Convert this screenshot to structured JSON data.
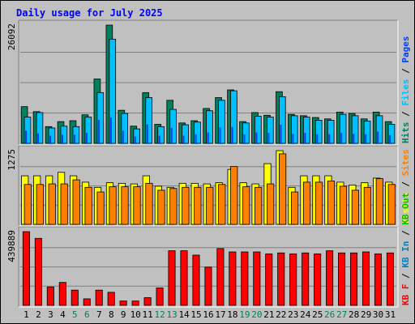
{
  "title": "Daily usage for July 2025",
  "colors": {
    "background": "#C0C0C0",
    "frame_light": "#FFFFFF",
    "frame_dark": "#808080",
    "title": "#0000FF",
    "grid": "#808080",
    "hits": "#00805C",
    "files": "#00C0FF",
    "pages": "#0040FF",
    "visits": "#FFFF00",
    "sites": "#FF8000",
    "kbytes": "#FF0000",
    "kb_in": "#0080C0",
    "kb_out": "#00C000",
    "weekend_label": "#00805C",
    "day_label": "#000000"
  },
  "chart_data": [
    {
      "type": "bar",
      "name": "top-panel",
      "ymax_label": "26092",
      "ymax": 26092,
      "legend": [
        {
          "text": "Hits",
          "color_key": "hits"
        },
        {
          "text": "Files",
          "color_key": "files"
        },
        {
          "text": "Pages",
          "color_key": "pages"
        }
      ],
      "categories": [
        "1",
        "2",
        "3",
        "4",
        "5",
        "6",
        "7",
        "8",
        "9",
        "10",
        "11",
        "12",
        "13",
        "14",
        "15",
        "16",
        "17",
        "18",
        "19",
        "20",
        "21",
        "22",
        "23",
        "24",
        "25",
        "26",
        "27",
        "28",
        "29",
        "30",
        "31"
      ],
      "series": [
        {
          "name": "Hits",
          "color_key": "hits",
          "values": [
            8100,
            7000,
            3700,
            4800,
            5000,
            6300,
            14200,
            26092,
            7300,
            3800,
            11200,
            4200,
            9500,
            4500,
            5000,
            7700,
            10100,
            11800,
            4800,
            6800,
            6200,
            11400,
            6400,
            6100,
            5700,
            5400,
            6900,
            6600,
            5400,
            6900,
            4800
          ]
        },
        {
          "name": "Files",
          "color_key": "files",
          "values": [
            5800,
            6800,
            3400,
            3800,
            3700,
            5800,
            11200,
            23000,
            6600,
            3200,
            10100,
            3700,
            7500,
            4100,
            4700,
            7200,
            9500,
            11600,
            4500,
            6000,
            5800,
            10300,
            6100,
            5800,
            5100,
            5100,
            6400,
            6100,
            4900,
            6100,
            4200
          ]
        },
        {
          "name": "Pages",
          "color_key": "pages",
          "values": [
            2800,
            2200,
            1700,
            1900,
            1900,
            2300,
            5200,
            5700,
            2800,
            1500,
            4200,
            1700,
            3400,
            1700,
            2000,
            2400,
            3500,
            3600,
            2000,
            2400,
            2300,
            4100,
            2100,
            2300,
            2000,
            2000,
            2300,
            2100,
            2000,
            2600,
            1800
          ]
        }
      ]
    },
    {
      "type": "bar",
      "name": "middle-panel",
      "ymax_label": "1275",
      "ymax": 1275,
      "legend": [
        {
          "text": "Visits",
          "color_key": "visits"
        },
        {
          "text": "Sites",
          "color_key": "sites"
        }
      ],
      "categories": [
        "1",
        "2",
        "3",
        "4",
        "5",
        "6",
        "7",
        "8",
        "9",
        "10",
        "11",
        "12",
        "13",
        "14",
        "15",
        "16",
        "17",
        "18",
        "19",
        "20",
        "21",
        "22",
        "23",
        "24",
        "25",
        "26",
        "27",
        "28",
        "29",
        "30",
        "31"
      ],
      "series": [
        {
          "name": "Visits",
          "color_key": "visits",
          "values": [
            840,
            840,
            840,
            900,
            840,
            730,
            640,
            720,
            710,
            700,
            840,
            660,
            640,
            710,
            710,
            700,
            720,
            950,
            720,
            700,
            1050,
            1275,
            640,
            840,
            840,
            840,
            730,
            680,
            720,
            800,
            730
          ]
        },
        {
          "name": "Sites",
          "color_key": "sites",
          "values": [
            690,
            690,
            700,
            700,
            770,
            640,
            560,
            650,
            650,
            650,
            710,
            590,
            620,
            640,
            640,
            640,
            690,
            1000,
            650,
            640,
            700,
            1220,
            560,
            730,
            730,
            750,
            660,
            590,
            640,
            790,
            690
          ]
        }
      ]
    },
    {
      "type": "bar",
      "name": "bottom-panel",
      "ymax_label": "439889",
      "ymax": 439889,
      "legend": [
        {
          "text": "KB F",
          "color_key": "kbytes"
        },
        {
          "text": "KB In",
          "color_key": "kb_in"
        },
        {
          "text": "KB Out",
          "color_key": "kb_out"
        }
      ],
      "categories": [
        "1",
        "2",
        "3",
        "4",
        "5",
        "6",
        "7",
        "8",
        "9",
        "10",
        "11",
        "12",
        "13",
        "14",
        "15",
        "16",
        "17",
        "18",
        "19",
        "20",
        "21",
        "22",
        "23",
        "24",
        "25",
        "26",
        "27",
        "28",
        "29",
        "30",
        "31"
      ],
      "weekend_days": [
        "5",
        "6",
        "12",
        "13",
        "19",
        "20",
        "26",
        "27"
      ],
      "series": [
        {
          "name": "KB F",
          "color_key": "kbytes",
          "values": [
            439889,
            400000,
            110000,
            137000,
            91000,
            39000,
            91000,
            78000,
            26000,
            26000,
            46000,
            104000,
            326000,
            326000,
            300000,
            228000,
            339000,
            319000,
            319000,
            319000,
            307000,
            313000,
            307000,
            313000,
            307000,
            326000,
            313000,
            313000,
            319000,
            307000,
            313000
          ]
        }
      ]
    }
  ]
}
